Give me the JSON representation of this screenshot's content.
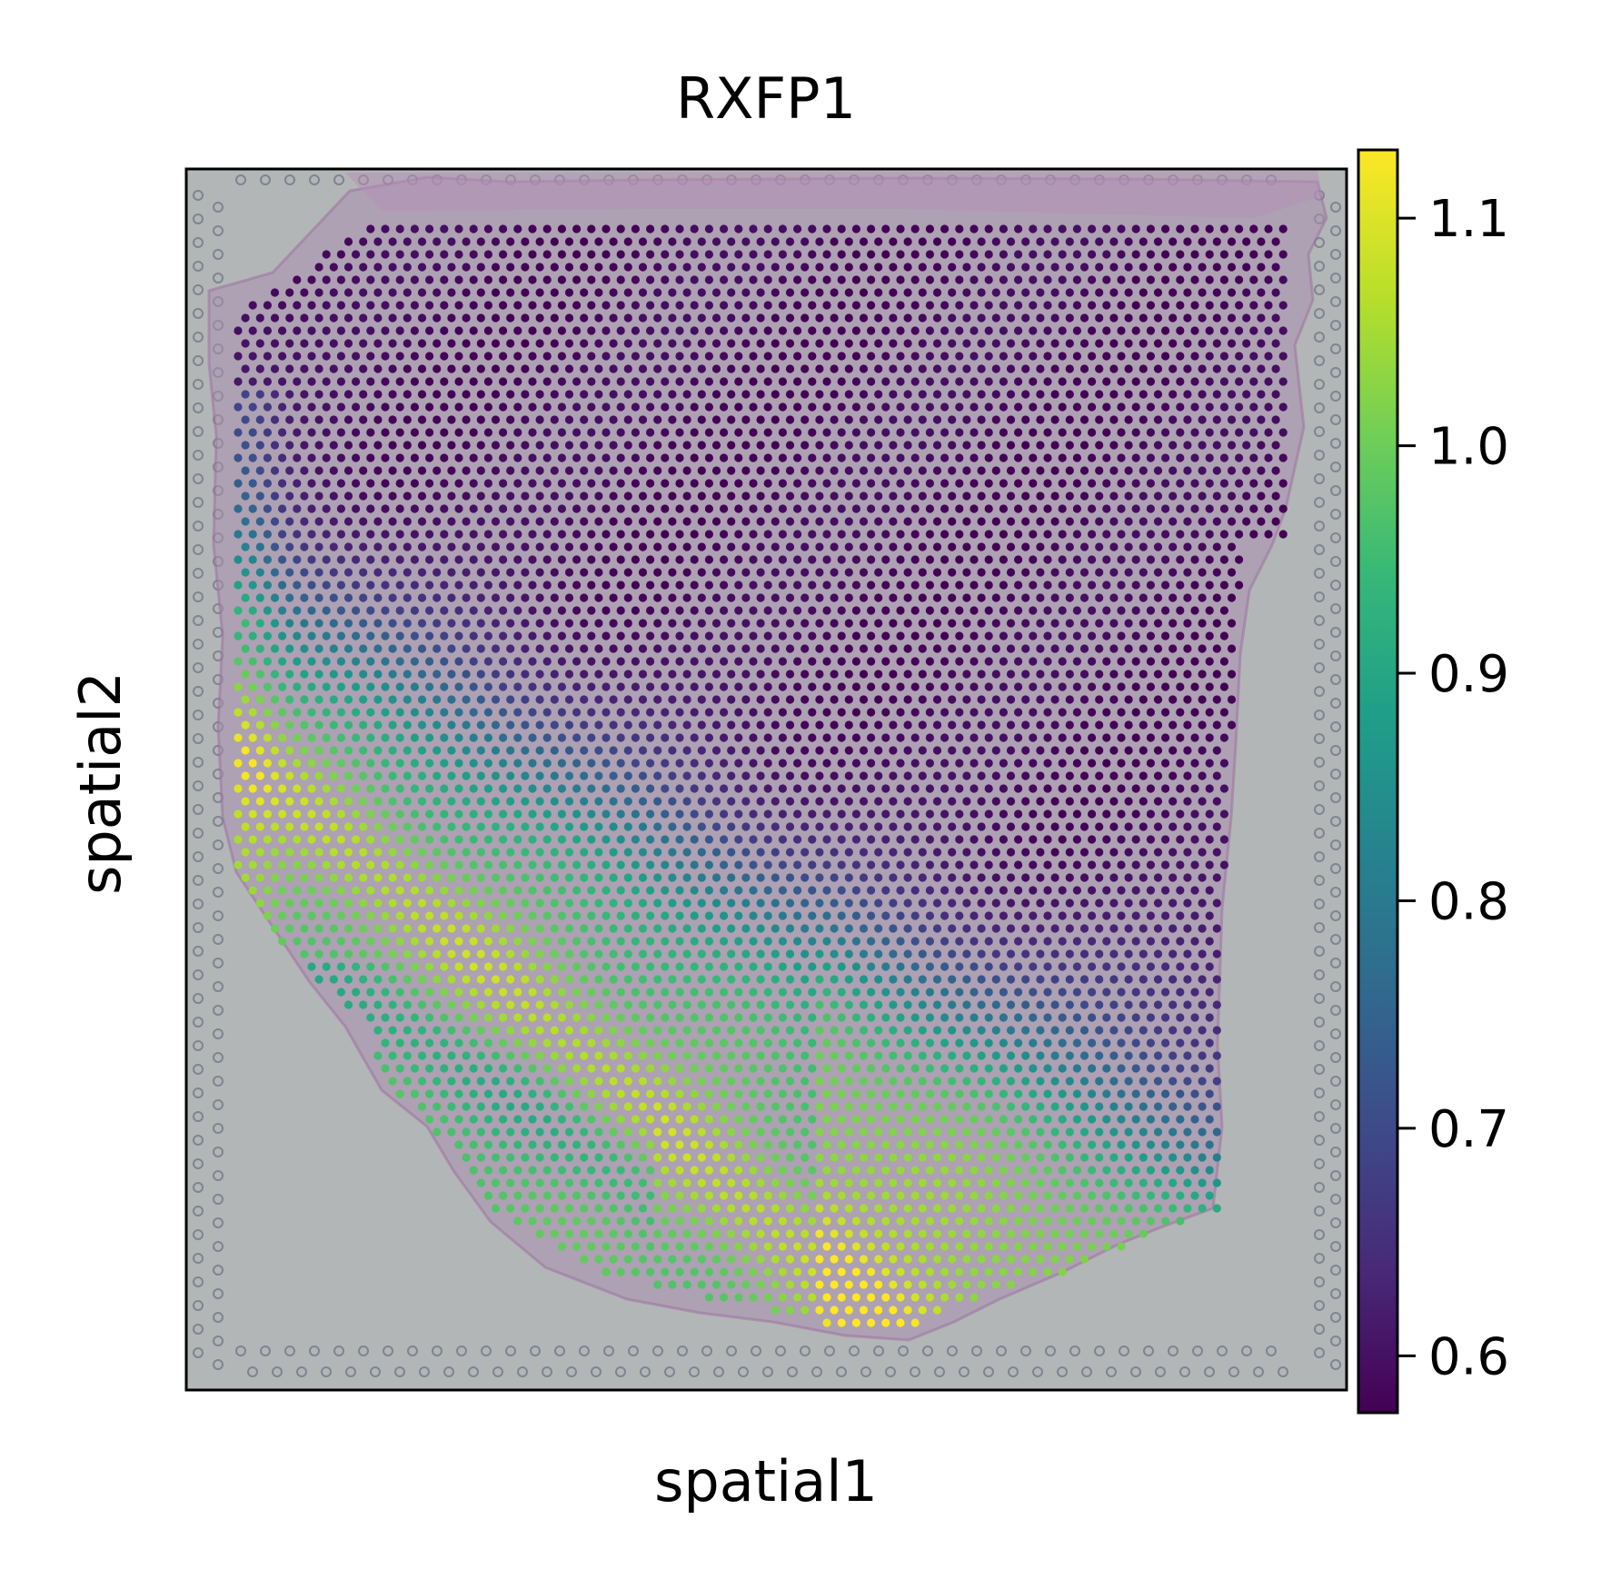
{
  "chart_data": {
    "type": "scatter",
    "subtype": "spatial-spot-plot-over-tissue-image",
    "title": "RXFP1",
    "xlabel": "spatial1",
    "ylabel": "spatial2",
    "x_ticks_shown": false,
    "y_ticks_shown": false,
    "grid": false,
    "background": "histology tissue image (grey slide, pink/purple tissue)",
    "colormap": "viridis",
    "colorbar": {
      "range": [
        0.575,
        1.13
      ],
      "ticks": [
        0.6,
        0.7,
        0.8,
        0.9,
        1.0,
        1.1
      ],
      "tick_labels": [
        "0.6",
        "0.7",
        "0.8",
        "0.9",
        "1.0",
        "1.1"
      ]
    },
    "value_pattern": {
      "high_region": "left edge and a diagonal band running from the left-middle toward the bottom-center (values about 1.05-1.12)",
      "mid_region": "lower-right area and the left-center interior (about 0.95-1.05)",
      "transition": "teal band (about 0.8-0.9) separating high and low regions",
      "low_region": "upper and upper-right area (about 0.58-0.65)"
    }
  },
  "colors": {
    "viridis_stops": [
      "#440154",
      "#482878",
      "#3e4989",
      "#31688e",
      "#26828e",
      "#1f9e89",
      "#35b779",
      "#6ece58",
      "#b5de2b",
      "#fde725"
    ],
    "slide_background": "#b3b6b6",
    "tissue_tint": "#a88fb0"
  }
}
